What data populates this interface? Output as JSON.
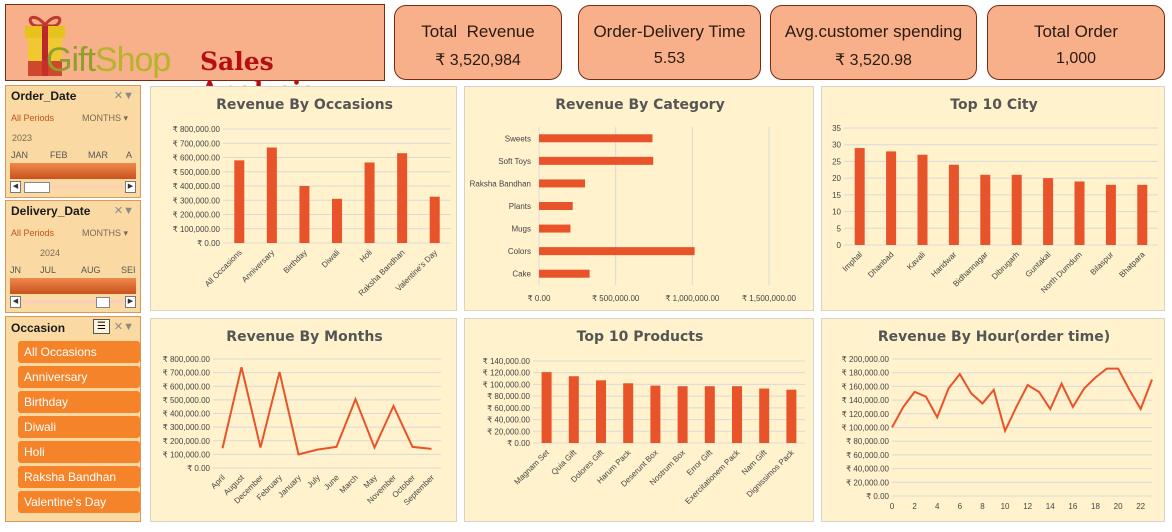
{
  "header": {
    "logo_part1": "Gift",
    "logo_part2": "Shop",
    "title": "Sales Analysis"
  },
  "kpis": [
    {
      "label": "Total  Revenue",
      "value": "₹ 3,520,984"
    },
    {
      "label": "Order-Delivery Time",
      "value": "5.53"
    },
    {
      "label": "Avg.customer spending",
      "value": "₹ 3,520.98"
    },
    {
      "label": "Total Order",
      "value": "1,000"
    }
  ],
  "slicers": {
    "order_date": {
      "title": "Order_Date",
      "all": "All Periods",
      "level": "MONTHS",
      "year": "2023",
      "months": [
        "JAN",
        "FEB",
        "MAR",
        "A"
      ]
    },
    "delivery_date": {
      "title": "Delivery_Date",
      "all": "All Periods",
      "level": "MONTHS",
      "year": "2024",
      "months": [
        "JN",
        "JUL",
        "AUG",
        "SEI"
      ]
    },
    "occasion": {
      "title": "Occasion",
      "items": [
        "All Occasions",
        "Anniversary",
        "Birthday",
        "Diwali",
        "Holi",
        "Raksha Bandhan",
        "Valentine's Day"
      ]
    }
  },
  "colors": {
    "accent": "#e8532a",
    "panel": "#fff2cc",
    "kpi": "#f7b08a",
    "slicer_item": "#f5832a"
  },
  "chart_data": [
    {
      "id": "occasions",
      "type": "bar",
      "title": "Revenue By Occasions",
      "categories": [
        "All Occasions",
        "Anniversary",
        "Birthday",
        "Diwali",
        "Holi",
        "Raksha Bandhan",
        "Valentine's Day"
      ],
      "values": [
        580000,
        670000,
        400000,
        310000,
        565000,
        630000,
        325000
      ],
      "ylim": [
        0,
        800000
      ],
      "yticks": [
        "₹ 0.00",
        "₹ 100,000.00",
        "₹ 200,000.00",
        "₹ 300,000.00",
        "₹ 400,000.00",
        "₹ 500,000.00",
        "₹ 600,000.00",
        "₹ 700,000.00",
        "₹ 800,000.00"
      ]
    },
    {
      "id": "category",
      "type": "barh",
      "title": "Revenue By Category",
      "categories": [
        "Sweets",
        "Soft Toys",
        "Raksha Bandhan",
        "Plants",
        "Mugs",
        "Colors",
        "Cake"
      ],
      "values": [
        740000,
        745000,
        300000,
        220000,
        205000,
        1015000,
        330000
      ],
      "xlim": [
        0,
        1500000
      ],
      "xticks": [
        "₹ 0.00",
        "₹ 500,000.00",
        "₹ 1,000,000.00",
        "₹ 1,500,000.00"
      ]
    },
    {
      "id": "city",
      "type": "bar",
      "title": "Top 10 City",
      "categories": [
        "Imphal",
        "Dhanbad",
        "Kavali",
        "Haridwar",
        "Bidhannagar",
        "Dibrugarh",
        "Guntakal",
        "North Dumdum",
        "Bilaspur",
        "Bhatpara"
      ],
      "values": [
        29,
        28,
        27,
        24,
        21,
        21,
        20,
        19,
        18,
        18
      ],
      "ylim": [
        0,
        35
      ],
      "yticks": [
        "0",
        "5",
        "10",
        "15",
        "20",
        "25",
        "30",
        "35"
      ]
    },
    {
      "id": "months",
      "type": "line",
      "title": "Revenue By Months",
      "categories": [
        "April",
        "August",
        "December",
        "February",
        "January",
        "July",
        "June",
        "March",
        "May",
        "November",
        "October",
        "September"
      ],
      "values": [
        145000,
        740000,
        150000,
        705000,
        100000,
        135000,
        155000,
        505000,
        150000,
        455000,
        155000,
        140000
      ],
      "ylim": [
        0,
        800000
      ],
      "yticks": [
        "₹ 0.00",
        "₹ 100,000.00",
        "₹ 200,000.00",
        "₹ 300,000.00",
        "₹ 400,000.00",
        "₹ 500,000.00",
        "₹ 600,000.00",
        "₹ 700,000.00",
        "₹ 800,000.00"
      ]
    },
    {
      "id": "products",
      "type": "bar",
      "title": "Top 10 Products",
      "categories": [
        "Magnam Set",
        "Quia Gift",
        "Dolores Gift",
        "Harum Pack",
        "Deserunt Box",
        "Nostrum Box",
        "Error Gift",
        "Exercitationem Pack",
        "Nam Gift",
        "Dignissimos Pack"
      ],
      "values": [
        121000,
        114000,
        107000,
        102000,
        98000,
        97000,
        97000,
        97000,
        93000,
        91000
      ],
      "ylim": [
        0,
        140000
      ],
      "yticks": [
        "₹ 0.00",
        "₹ 20,000.00",
        "₹ 40,000.00",
        "₹ 60,000.00",
        "₹ 80,000.00",
        "₹ 100,000.00",
        "₹ 120,000.00",
        "₹ 140,000.00"
      ]
    },
    {
      "id": "hour",
      "type": "line",
      "title": "Revenue By Hour(order time)",
      "x": [
        0,
        1,
        2,
        3,
        4,
        5,
        6,
        7,
        8,
        9,
        10,
        11,
        12,
        13,
        14,
        15,
        16,
        17,
        18,
        19,
        20,
        21,
        22,
        23
      ],
      "values": [
        100000,
        130000,
        152000,
        145000,
        115000,
        157000,
        178000,
        150000,
        135000,
        155000,
        95000,
        130000,
        162000,
        152000,
        127000,
        164000,
        130000,
        157000,
        173000,
        186000,
        186000,
        155000,
        127000,
        170000
      ],
      "ylim": [
        0,
        200000
      ],
      "xtick_labels": [
        "0",
        "2",
        "4",
        "6",
        "8",
        "10",
        "12",
        "14",
        "16",
        "18",
        "20",
        "22"
      ],
      "yticks": [
        "₹ 0.00",
        "₹ 20,000.00",
        "₹ 40,000.00",
        "₹ 60,000.00",
        "₹ 80,000.00",
        "₹ 100,000.00",
        "₹ 120,000.00",
        "₹ 140,000.00",
        "₹ 160,000.00",
        "₹ 180,000.00",
        "₹ 200,000.00"
      ]
    }
  ]
}
